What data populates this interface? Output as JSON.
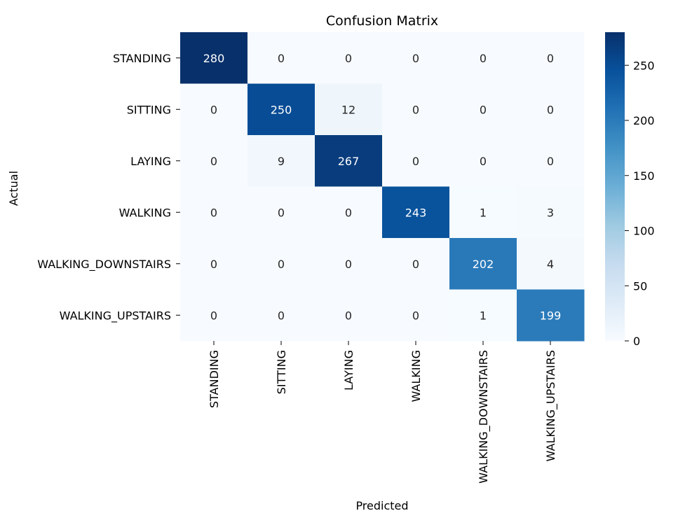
{
  "chart_data": {
    "type": "heatmap",
    "title": "Confusion Matrix",
    "xlabel": "Predicted",
    "ylabel": "Actual",
    "x_categories": [
      "STANDING",
      "SITTING",
      "LAYING",
      "WALKING",
      "WALKING_DOWNSTAIRS",
      "WALKING_UPSTAIRS"
    ],
    "y_categories": [
      "STANDING",
      "SITTING",
      "LAYING",
      "WALKING",
      "WALKING_DOWNSTAIRS",
      "WALKING_UPSTAIRS"
    ],
    "values": [
      [
        280,
        0,
        0,
        0,
        0,
        0
      ],
      [
        0,
        250,
        12,
        0,
        0,
        0
      ],
      [
        0,
        9,
        267,
        0,
        0,
        0
      ],
      [
        0,
        0,
        0,
        243,
        1,
        3
      ],
      [
        0,
        0,
        0,
        0,
        202,
        4
      ],
      [
        0,
        0,
        0,
        0,
        1,
        199
      ]
    ],
    "colormap": "Blues",
    "color_range": [
      0,
      280
    ],
    "colorbar_ticks": [
      0,
      50,
      100,
      150,
      200,
      250
    ],
    "colorbar_tick_labels": [
      "0",
      "50",
      "100",
      "150",
      "200",
      "250"
    ],
    "annotate": true,
    "grid": false
  }
}
